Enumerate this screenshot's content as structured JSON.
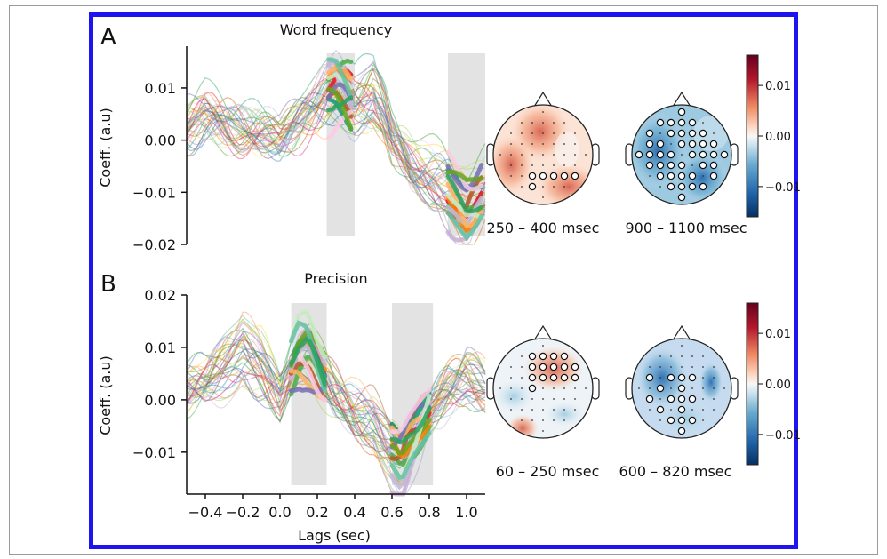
{
  "chart_data": [
    {
      "type": "line",
      "panel_label": "A",
      "title": "Word frequency",
      "ylabel": "Coeff. (a.u)",
      "xlim": [
        -0.5,
        1.1
      ],
      "ylim": [
        -0.02,
        0.018
      ],
      "yticks": [
        0.01,
        0.0,
        -0.01,
        -0.02
      ],
      "ytick_labels": [
        "0.01",
        "0.00",
        "−0.01",
        "−0.02"
      ],
      "significant_windows": [
        [
          0.25,
          0.4
        ],
        [
          0.9,
          1.1
        ]
      ],
      "n_channels": 40,
      "mean_profile": {
        "x": [
          -0.5,
          -0.4,
          -0.3,
          -0.2,
          -0.1,
          0.0,
          0.1,
          0.2,
          0.25,
          0.3,
          0.35,
          0.4,
          0.45,
          0.5,
          0.55,
          0.6,
          0.7,
          0.8,
          0.9,
          1.0,
          1.1
        ],
        "y": [
          0.002,
          0.004,
          0.003,
          0.002,
          0.001,
          0.0,
          0.003,
          0.006,
          0.008,
          0.009,
          0.008,
          0.006,
          0.007,
          0.008,
          0.005,
          0.0,
          -0.005,
          -0.007,
          -0.009,
          -0.012,
          -0.01
        ]
      },
      "topomaps": [
        {
          "caption": "250 – 400 msec",
          "polarity": "positive",
          "significant_electrodes": 6
        },
        {
          "caption": "900 – 1100 msec",
          "polarity": "negative",
          "significant_electrodes": 48
        }
      ],
      "colorbar": {
        "ticks": [
          0.01,
          0.0,
          -0.01
        ],
        "tick_labels": [
          "0.01",
          "0.00",
          "−0.01"
        ],
        "range": [
          -0.016,
          0.016
        ]
      }
    },
    {
      "type": "line",
      "panel_label": "B",
      "title": "Precision",
      "xlabel": "Lags (sec)",
      "ylabel": "Coeff. (a.u)",
      "xlim": [
        -0.5,
        1.1
      ],
      "ylim": [
        -0.018,
        0.02
      ],
      "xticks": [
        -0.4,
        -0.2,
        0.0,
        0.2,
        0.4,
        0.6,
        0.8,
        1.0
      ],
      "xtick_labels": [
        "−0.4",
        "−0.2",
        "0.0",
        "0.2",
        "0.4",
        "0.6",
        "0.8",
        "1.0"
      ],
      "yticks": [
        0.02,
        0.01,
        0.0,
        -0.01
      ],
      "ytick_labels": [
        "0.02",
        "0.01",
        "0.00",
        "−0.01"
      ],
      "significant_windows": [
        [
          0.06,
          0.25
        ],
        [
          0.6,
          0.82
        ]
      ],
      "n_channels": 40,
      "mean_profile": {
        "x": [
          -0.5,
          -0.4,
          -0.3,
          -0.2,
          -0.1,
          0.0,
          0.1,
          0.15,
          0.2,
          0.3,
          0.4,
          0.5,
          0.6,
          0.65,
          0.7,
          0.8,
          0.9,
          1.0,
          1.1
        ],
        "y": [
          0.002,
          0.003,
          0.006,
          0.009,
          0.006,
          0.001,
          0.008,
          0.009,
          0.006,
          0.001,
          -0.003,
          -0.004,
          -0.009,
          -0.011,
          -0.008,
          -0.002,
          0.002,
          0.004,
          0.002
        ]
      },
      "topomaps": [
        {
          "caption": "60 – 250 msec",
          "polarity": "positive",
          "significant_electrodes": 15
        },
        {
          "caption": "600 – 820 msec",
          "polarity": "negative",
          "significant_electrodes": 19
        }
      ],
      "colorbar": {
        "ticks": [
          0.01,
          0.0,
          -0.01
        ],
        "tick_labels": [
          "0.01",
          "0.00",
          "−0.01"
        ],
        "range": [
          -0.016,
          0.016
        ]
      }
    }
  ],
  "colors": {
    "frame": "#1e14f0",
    "window": "#e3e3e3",
    "positive": "#b2182b",
    "negative": "#2166ac"
  }
}
